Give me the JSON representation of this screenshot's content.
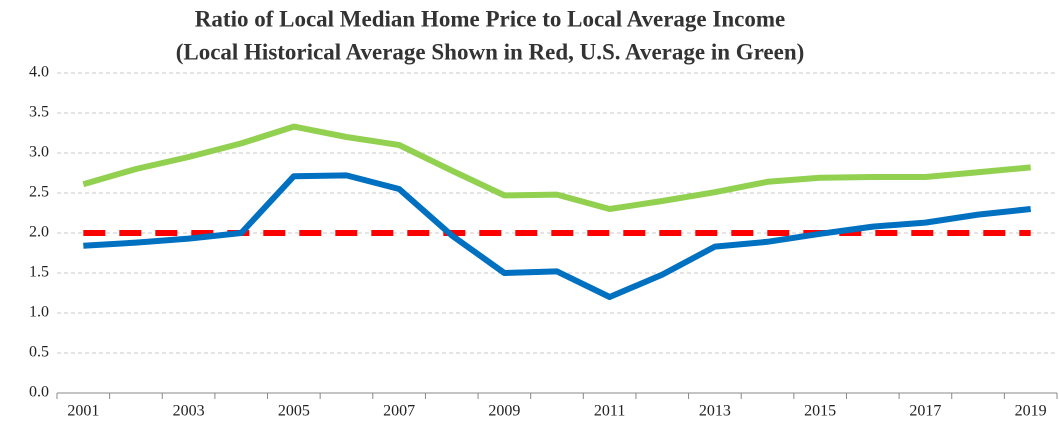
{
  "chart_data": {
    "type": "line",
    "title": [
      "Ratio of Local Median Home Price to Local Average Income",
      "(Local Historical Average Shown in Red, U.S. Average in Green)"
    ],
    "categories": [
      "2001",
      null,
      "2003",
      null,
      "2005",
      null,
      "2007",
      null,
      "2009",
      null,
      "2011",
      null,
      "2013",
      null,
      "2015",
      null,
      "2017",
      null,
      "2019"
    ],
    "series": [
      {
        "color": "#92d050",
        "style": "solid",
        "values": [
          2.61,
          2.8,
          2.95,
          3.12,
          3.33,
          3.2,
          3.1,
          2.78,
          2.47,
          2.48,
          2.3,
          2.4,
          2.51,
          2.64,
          2.69,
          2.7,
          2.7,
          2.76,
          2.82
        ]
      },
      {
        "color": "#ff0000",
        "style": "dashed",
        "values": [
          2,
          2,
          2,
          2,
          2,
          2,
          2,
          2,
          2,
          2,
          2,
          2,
          2,
          2,
          2,
          2,
          2,
          2,
          2
        ]
      },
      {
        "color": "#0070c0",
        "style": "solid",
        "values": [
          1.84,
          1.88,
          1.93,
          2.0,
          2.71,
          2.72,
          2.55,
          1.97,
          1.5,
          1.52,
          1.2,
          1.48,
          1.83,
          1.89,
          1.99,
          2.08,
          2.13,
          2.23,
          2.3
        ]
      }
    ],
    "ylim": [
      0,
      4
    ],
    "yticks": [
      {
        "value": 0,
        "label": "0.0"
      },
      0.5,
      {
        "value": 1,
        "label": "1.0"
      },
      1.5,
      {
        "value": 2,
        "label": "2.0"
      },
      2.5,
      {
        "value": 3,
        "label": "3.0"
      },
      3.5,
      {
        "value": 4,
        "label": "4.0"
      }
    ],
    "grid": true
  }
}
